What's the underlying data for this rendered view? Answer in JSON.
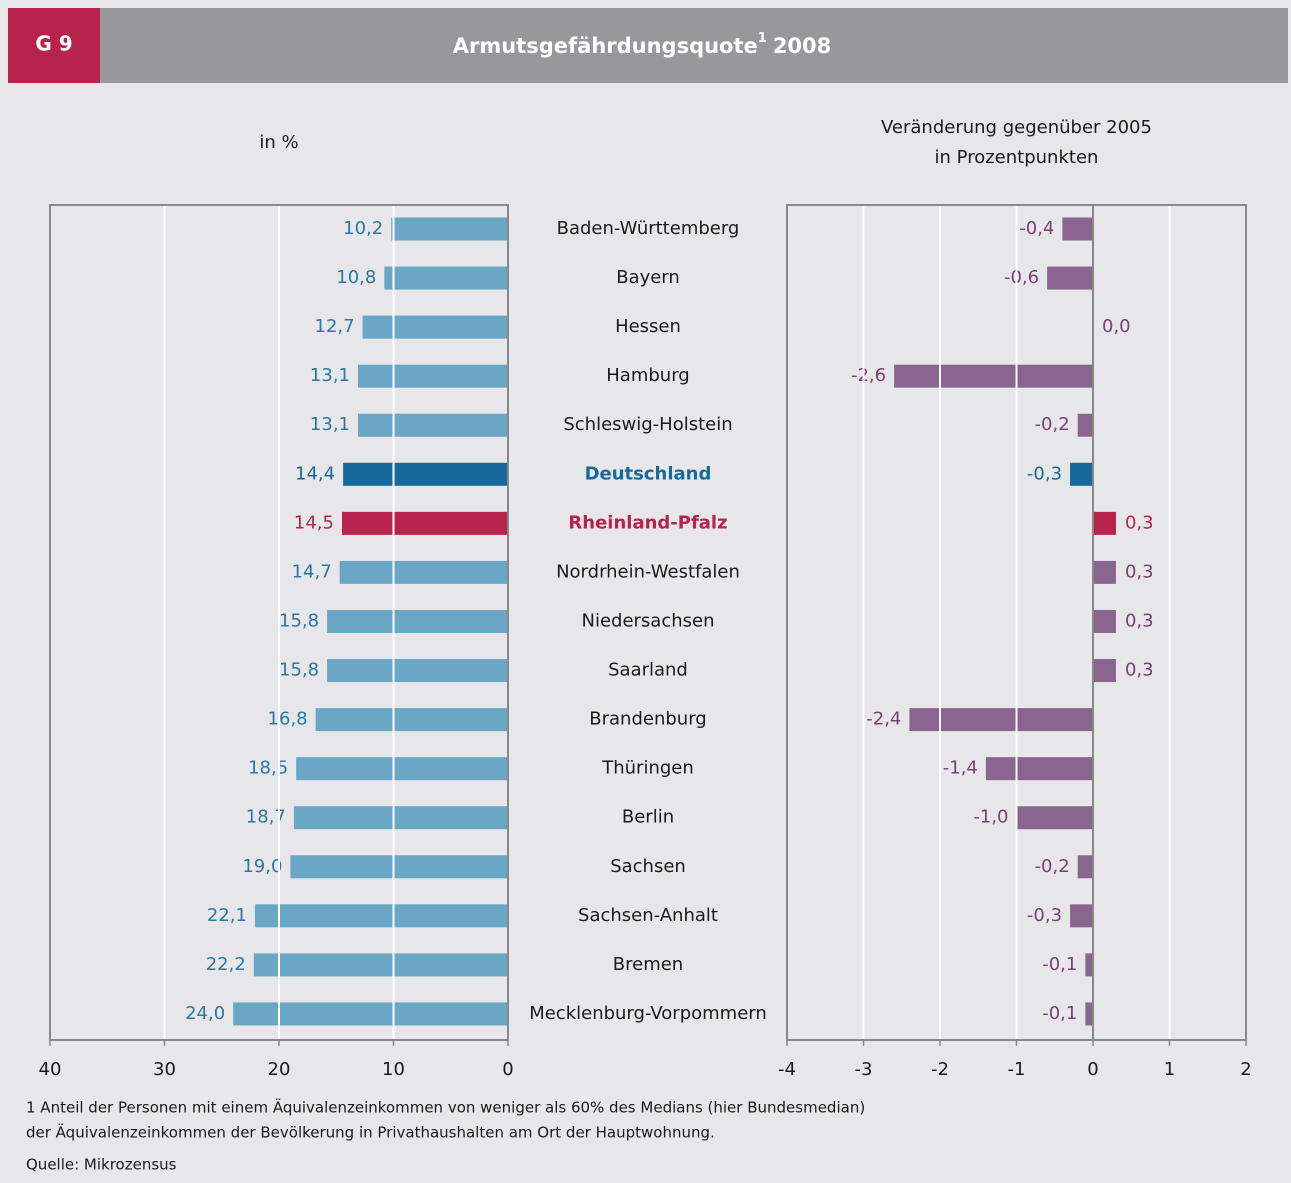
{
  "label": "G 9",
  "title": "Armutsgefährdungsquote",
  "title_sup": "1",
  "title_rest": "2008",
  "chart_data": [
    {
      "type": "barh",
      "subtitle": [
        "in %"
      ],
      "categories": [
        "Baden-Württemberg",
        "Bayern",
        "Hessen",
        "Hamburg",
        "Schleswig-Holstein",
        "Deutschland",
        "Rheinland-Pfalz",
        "Nordrhein-Westfalen",
        "Niedersachsen",
        "Saarland",
        "Brandenburg",
        "Thüringen",
        "Berlin",
        "Sachsen",
        "Sachsen-Anhalt",
        "Bremen",
        "Mecklenburg-Vorpommern"
      ],
      "values": [
        10.2,
        10.8,
        12.7,
        13.1,
        13.1,
        14.4,
        14.5,
        14.7,
        15.8,
        15.8,
        16.8,
        18.5,
        18.7,
        19.0,
        22.1,
        22.2,
        24.0
      ],
      "value_labels": [
        "10,2",
        "10,8",
        "12,7",
        "13,1",
        "13,1",
        "14,4",
        "14,5",
        "14,7",
        "15,8",
        "15,8",
        "16,8",
        "18,5",
        "18,7",
        "19,0",
        "22,1",
        "22,2",
        "24,0"
      ],
      "color": "#6aa6c6",
      "label_color": "#2a77a8",
      "colors": [
        "#6aa6c6",
        "#6aa6c6",
        "#6aa6c6",
        "#6aa6c6",
        "#6aa6c6",
        "#17699b",
        "#b8234b",
        "#6aa6c6",
        "#6aa6c6",
        "#6aa6c6",
        "#6aa6c6",
        "#6aa6c6",
        "#6aa6c6",
        "#6aa6c6",
        "#6aa6c6",
        "#6aa6c6",
        "#6aa6c6"
      ],
      "xlim": [
        40,
        0
      ],
      "xticks": [
        40,
        30,
        20,
        10,
        0
      ],
      "grid": true
    },
    {
      "type": "barh",
      "subtitle": [
        "Veränderung gegenüber 2005",
        "in Prozentpunkten"
      ],
      "values": [
        -0.4,
        -0.6,
        0.0,
        -2.6,
        -0.2,
        -0.3,
        0.3,
        0.3,
        0.3,
        0.3,
        -2.4,
        -1.4,
        -1.0,
        -0.2,
        -0.3,
        -0.1,
        -0.1
      ],
      "value_labels": [
        "-0,4",
        "-0,6",
        "0,0",
        "-2,6",
        "-0,2",
        "-0,3",
        "0,3",
        "0,3",
        "0,3",
        "0,3",
        "-2,4",
        "-1,4",
        "-1,0",
        "-0,2",
        "-0,3",
        "-0,1",
        "-0,1"
      ],
      "color": "#8a6590",
      "label_color": "#7a3f79",
      "colors": [
        "#8a6590",
        "#8a6590",
        "#8a6590",
        "#8a6590",
        "#8a6590",
        "#17699b",
        "#b8234b",
        "#8a6590",
        "#8a6590",
        "#8a6590",
        "#8a6590",
        "#8a6590",
        "#8a6590",
        "#8a6590",
        "#8a6590",
        "#8a6590",
        "#8a6590"
      ],
      "xlim": [
        -4,
        2
      ],
      "xticks": [
        -4,
        -3,
        -2,
        -1,
        0,
        1,
        2
      ],
      "grid": true
    }
  ],
  "footnotes": [
    "1 Anteil der Personen mit einem Äquivalenzeinkommen von weniger als 60% des Medians (hier Bundesmedian)",
    "der Äquivalenzeinkommen der Bevölkerung in Privathaushalten am Ort der Hauptwohnung."
  ],
  "source": "Quelle: Mikrozensus"
}
